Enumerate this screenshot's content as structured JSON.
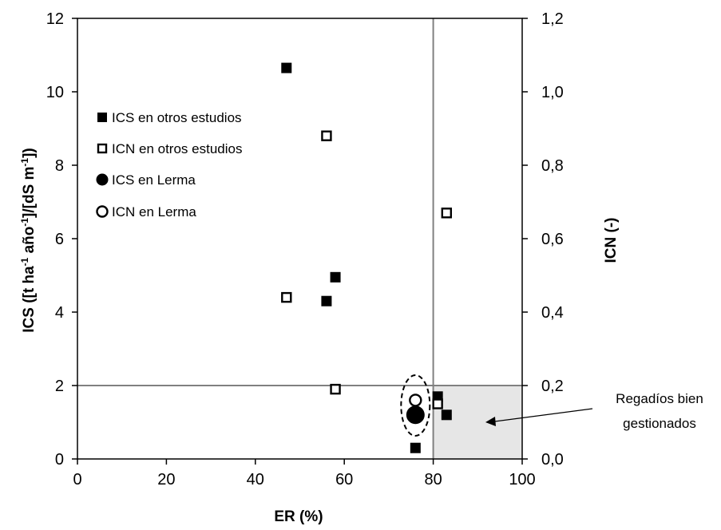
{
  "chart_data": {
    "type": "scatter",
    "xlabel": "ER (%)",
    "ylabel_left": "ICS ([t ha-1 año-1]/[dS m-1])",
    "ylabel_right": "ICN (-)",
    "xlim": [
      0,
      100
    ],
    "ylim_left": [
      0,
      12
    ],
    "ylim_right": [
      0,
      1.2
    ],
    "x_ticks": [
      "0",
      "20",
      "40",
      "60",
      "80",
      "100"
    ],
    "y_left_ticks": [
      "0",
      "2",
      "4",
      "6",
      "8",
      "10",
      "12"
    ],
    "y_right_ticks": [
      "0,0",
      "0,2",
      "0,4",
      "0,6",
      "0,8",
      "1,0",
      "1,2"
    ],
    "thresholds": {
      "x": 80,
      "y_left": 2
    },
    "shaded_region": {
      "x": [
        80,
        100
      ],
      "y_left": [
        0,
        2
      ],
      "color": "#e6e6e6"
    },
    "legend_placement": "left",
    "series": [
      {
        "name": "ICS en otros estudios",
        "marker": "filled-square",
        "axis": "left",
        "points": [
          {
            "x": 47,
            "y": 10.65
          },
          {
            "x": 58,
            "y": 4.95
          },
          {
            "x": 56,
            "y": 4.3
          },
          {
            "x": 81,
            "y": 1.7
          },
          {
            "x": 83,
            "y": 1.2
          },
          {
            "x": 76,
            "y": 0.3
          }
        ]
      },
      {
        "name": "ICN en otros estudios",
        "marker": "open-square",
        "axis": "right",
        "points": [
          {
            "x": 56,
            "y": 0.88
          },
          {
            "x": 83,
            "y": 0.67
          },
          {
            "x": 47,
            "y": 0.44
          },
          {
            "x": 58,
            "y": 0.19
          },
          {
            "x": 81,
            "y": 0.15
          }
        ]
      },
      {
        "name": "ICS en Lerma",
        "marker": "filled-circle",
        "axis": "left",
        "points": [
          {
            "x": 76,
            "y": 1.2
          }
        ]
      },
      {
        "name": "ICN en Lerma",
        "marker": "open-circle",
        "axis": "right",
        "points": [
          {
            "x": 76,
            "y": 0.16
          }
        ]
      }
    ],
    "annotation": {
      "lines": [
        "Regadíos bien",
        "gestionados"
      ],
      "points_to": "shaded-region"
    },
    "colors": {
      "marker": "#000000",
      "threshold_line": "#808080",
      "shade": "#e6e6e6"
    }
  }
}
